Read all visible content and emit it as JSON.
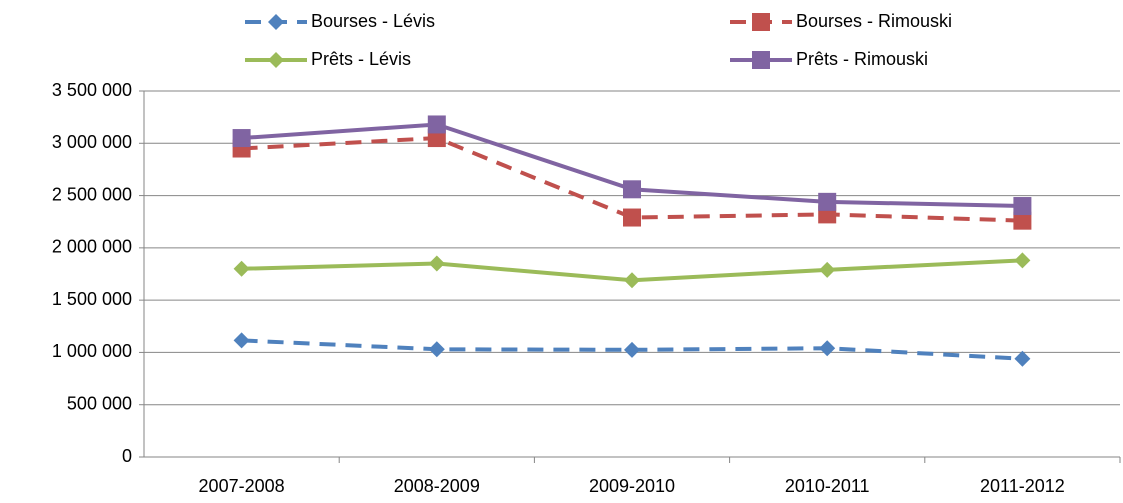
{
  "chart_data": {
    "type": "line",
    "categories": [
      "2007-2008",
      "2008-2009",
      "2009-2010",
      "2010-2011",
      "2011-2012"
    ],
    "series": [
      {
        "name": "Bourses - Lévis",
        "color": "#4f81bd",
        "dash": true,
        "marker": "diamond",
        "values": [
          1115000,
          1030000,
          1025000,
          1040000,
          940000
        ]
      },
      {
        "name": "Bourses - Rimouski",
        "color": "#c0504d",
        "dash": true,
        "marker": "square",
        "values": [
          2950000,
          3050000,
          2290000,
          2320000,
          2260000
        ]
      },
      {
        "name": "Prêts - Lévis",
        "color": "#9bbb59",
        "dash": false,
        "marker": "diamond",
        "values": [
          1800000,
          1850000,
          1690000,
          1790000,
          1880000
        ]
      },
      {
        "name": "Prêts - Rimouski",
        "color": "#8064a2",
        "dash": false,
        "marker": "square",
        "values": [
          3050000,
          3180000,
          2560000,
          2440000,
          2400000
        ]
      }
    ],
    "ylim": [
      0,
      3500000
    ],
    "yticks": [
      0,
      {
        "value": 500000,
        "label": "500 000"
      },
      {
        "value": 1000000,
        "label": "1 000 000"
      },
      {
        "value": 1500000,
        "label": "1 500 000"
      },
      {
        "value": 2000000,
        "label": "2 000 000"
      },
      {
        "value": 2500000,
        "label": "2 500 000"
      },
      {
        "value": 3000000,
        "label": "3 000 000"
      },
      {
        "value": 3500000,
        "label": "3 500 000"
      }
    ],
    "grid": true,
    "legend": "top"
  }
}
